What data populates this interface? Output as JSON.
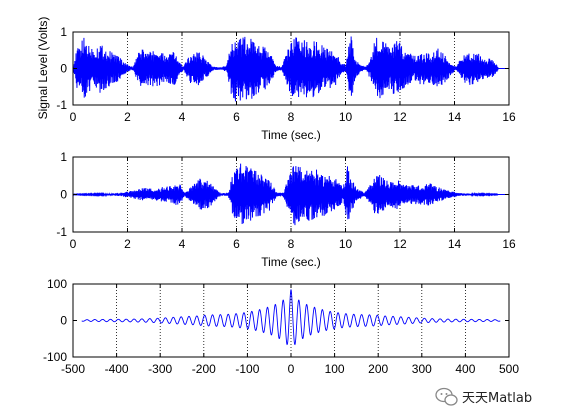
{
  "chart_data": [
    {
      "type": "line",
      "xlabel": "Time (sec.)",
      "ylabel": "Signal Level (Volts)",
      "xlim": [
        0,
        16
      ],
      "ylim": [
        -1,
        1
      ],
      "xticks": [
        0,
        2,
        4,
        6,
        8,
        10,
        12,
        14,
        16
      ],
      "yticks": [
        -1,
        0,
        1
      ],
      "grid": "x-dotted",
      "series": [
        {
          "color": "#0000ff",
          "envelope": {
            "x": [
              0.0,
              0.15,
              0.4,
              0.7,
              1.0,
              1.3,
              1.6,
              1.85,
              2.05,
              2.2,
              2.5,
              2.8,
              3.1,
              3.4,
              3.7,
              3.9,
              4.05,
              4.3,
              4.6,
              4.9,
              5.15,
              5.45,
              5.65,
              5.8,
              6.0,
              6.2,
              6.45,
              6.8,
              7.2,
              7.45,
              7.65,
              7.9,
              8.1,
              8.4,
              8.7,
              9.0,
              9.3,
              9.6,
              9.85,
              10.0,
              10.2,
              10.35,
              10.55,
              10.75,
              10.95,
              11.1,
              11.3,
              11.6,
              11.9,
              12.2,
              12.5,
              12.8,
              13.1,
              13.4,
              13.7,
              13.9,
              14.05,
              14.3,
              14.6,
              14.9,
              15.1,
              15.3,
              15.45,
              15.6
            ],
            "y": [
              0.05,
              0.55,
              0.85,
              0.6,
              0.7,
              0.5,
              0.4,
              0.2,
              0.08,
              0.05,
              0.6,
              0.45,
              0.55,
              0.35,
              0.5,
              0.2,
              0.05,
              0.4,
              0.5,
              0.25,
              0.05,
              0.03,
              0.1,
              0.75,
              0.95,
              0.85,
              0.9,
              0.7,
              0.5,
              0.08,
              0.05,
              0.55,
              0.95,
              0.75,
              0.85,
              0.7,
              0.6,
              0.5,
              0.2,
              0.1,
              0.95,
              0.3,
              0.1,
              0.05,
              0.35,
              0.85,
              0.95,
              0.6,
              0.8,
              0.5,
              0.35,
              0.45,
              0.4,
              0.55,
              0.35,
              0.15,
              0.05,
              0.35,
              0.5,
              0.4,
              0.25,
              0.3,
              0.2,
              0.05
            ]
          }
        }
      ]
    },
    {
      "type": "line",
      "xlabel": "Time (sec.)",
      "ylabel": "",
      "xlim": [
        0,
        16
      ],
      "ylim": [
        -1,
        1
      ],
      "xticks": [
        0,
        2,
        4,
        6,
        8,
        10,
        12,
        14,
        16
      ],
      "yticks": [
        -1,
        0,
        1
      ],
      "grid": "x-dotted",
      "series": [
        {
          "color": "#0000ff",
          "envelope": {
            "x": [
              0.0,
              1.2,
              1.8,
              2.3,
              2.6,
              3.0,
              3.3,
              3.6,
              3.9,
              4.1,
              4.4,
              4.7,
              5.0,
              5.4,
              5.7,
              5.85,
              6.0,
              6.2,
              6.5,
              6.8,
              7.2,
              7.5,
              7.7,
              7.95,
              8.1,
              8.4,
              8.7,
              9.0,
              9.3,
              9.6,
              9.9,
              10.1,
              10.25,
              10.45,
              10.7,
              10.95,
              11.1,
              11.3,
              11.6,
              11.9,
              12.2,
              12.5,
              12.8,
              13.1,
              13.4,
              13.8,
              14.2,
              14.8,
              15.6
            ],
            "y": [
              0.01,
              0.02,
              0.05,
              0.12,
              0.18,
              0.15,
              0.2,
              0.25,
              0.3,
              0.05,
              0.25,
              0.45,
              0.35,
              0.03,
              0.05,
              0.55,
              0.9,
              0.8,
              0.75,
              0.6,
              0.45,
              0.05,
              0.05,
              0.5,
              0.85,
              0.7,
              0.75,
              0.65,
              0.55,
              0.5,
              0.2,
              0.85,
              0.4,
              0.15,
              0.05,
              0.3,
              0.6,
              0.5,
              0.35,
              0.4,
              0.3,
              0.25,
              0.28,
              0.3,
              0.2,
              0.1,
              0.04,
              0.02,
              0.01
            ]
          }
        }
      ]
    },
    {
      "type": "line",
      "xlabel": "",
      "ylabel": "",
      "xlim": [
        -500,
        500
      ],
      "ylim": [
        -100,
        100
      ],
      "xticks": [
        -500,
        -400,
        -300,
        -200,
        -100,
        0,
        100,
        200,
        300,
        400,
        500
      ],
      "yticks": [
        -100,
        0,
        100
      ],
      "grid": "x-dotted",
      "series": [
        {
          "color": "#0000ff",
          "envelope": {
            "x": [
              -480,
              -400,
              -300,
              -220,
              -200,
              -150,
              -110,
              -70,
              -40,
              -20,
              -5,
              0,
              5,
              20,
              40,
              70,
              110,
              150,
              200,
              220,
              300,
              400,
              480
            ],
            "y": [
              2,
              4,
              8,
              12,
              15,
              22,
              30,
              38,
              45,
              55,
              70,
              85,
              70,
              55,
              45,
              38,
              30,
              22,
              15,
              12,
              8,
              4,
              2
            ]
          },
          "period": 18
        }
      ]
    }
  ],
  "watermark": {
    "text": "天天Matlab",
    "icon": "wechat-icon"
  }
}
